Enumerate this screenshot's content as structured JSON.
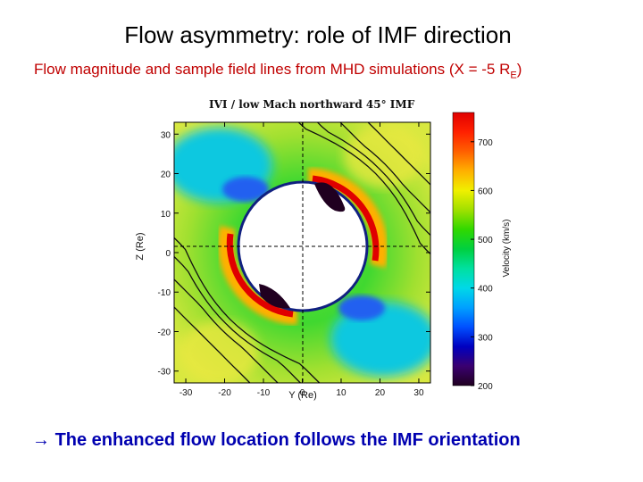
{
  "slide": {
    "title": "Flow asymmetry: role of IMF direction",
    "subtitle_main": "Flow magnitude and sample field lines from MHD simulations (X = -5 R",
    "subtitle_sub": "E",
    "subtitle_end": ")",
    "footer_arrow": "→",
    "footer": "The enhanced flow location follows the IMF orientation"
  },
  "figure": {
    "plot_title": "IVI  /  low Mach northward 45° IMF",
    "icons": [
      "right-arrow-icon"
    ]
  },
  "chart_data": {
    "type": "heatmap",
    "title": "IVI  /  low Mach northward 45° IMF",
    "xlabel": "Y (Re)",
    "ylabel": "Z (Re)",
    "xlim": [
      -33,
      33
    ],
    "ylim": [
      -33,
      33
    ],
    "x_ticks": [
      "-30",
      "-20",
      "-10",
      "0",
      "10",
      "20",
      "30"
    ],
    "y_ticks": [
      "30",
      "20",
      "10",
      "0",
      "-10",
      "-20",
      "-30"
    ],
    "colorbar": {
      "label": "Velocity (km/s)",
      "range": [
        200,
        760
      ],
      "ticks": [
        "700",
        "600",
        "500",
        "400",
        "300",
        "200"
      ],
      "colors": [
        "#200020",
        "#3a0070",
        "#0000c0",
        "#0050ff",
        "#00a0ff",
        "#00d8e8",
        "#00e0a0",
        "#00d040",
        "#30d800",
        "#a0e000",
        "#f0f000",
        "#ffb000",
        "#ff6000",
        "#ff2000",
        "#e00000"
      ]
    },
    "grid": false,
    "crosshair": true
  }
}
